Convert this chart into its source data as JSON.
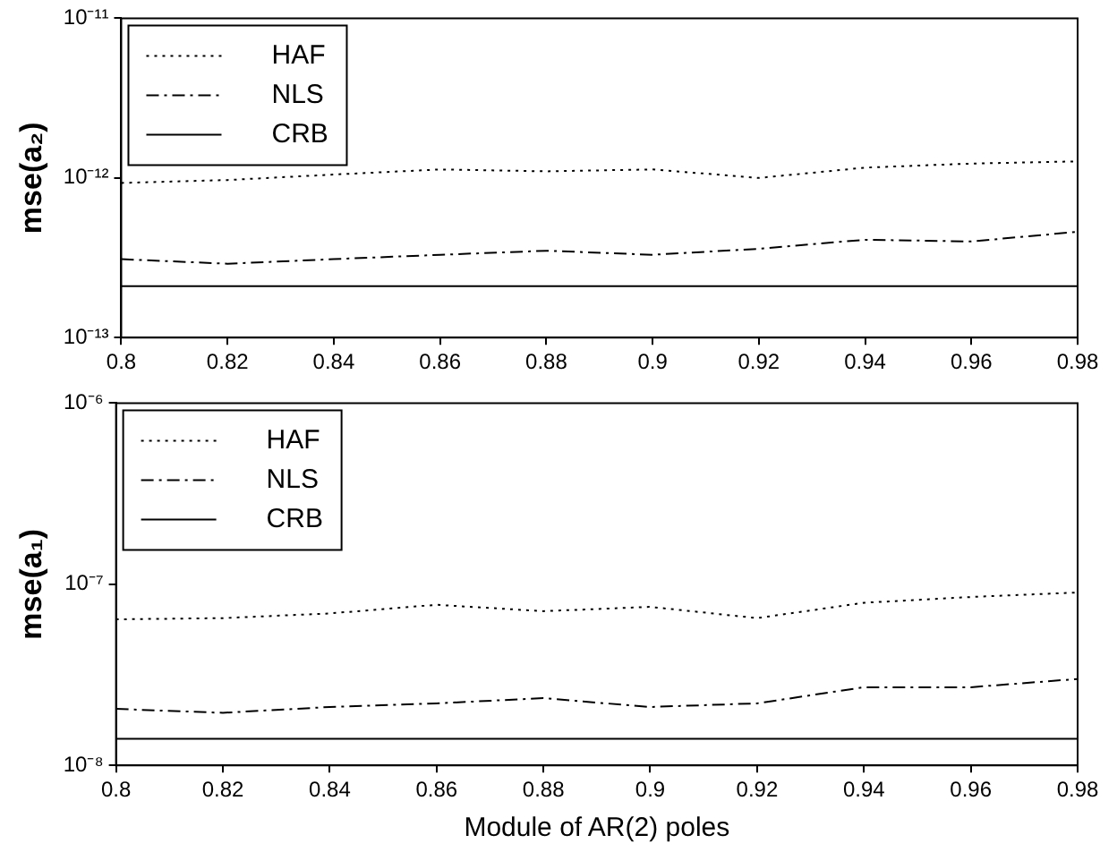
{
  "chart_data": [
    {
      "type": "line",
      "ylabel": "mse(a₂)",
      "legend": "top left",
      "grid": false,
      "marker": "none",
      "log": "y",
      "x": [
        0.8,
        0.82,
        0.84,
        0.86,
        0.88,
        0.9,
        0.92,
        0.94,
        0.96,
        0.98
      ],
      "xlim": [
        0.8,
        0.98
      ],
      "xticks": [
        0.8,
        0.82,
        0.84,
        0.86,
        0.88,
        0.9,
        0.92,
        0.94,
        0.96,
        0.98
      ],
      "ylim": [
        1e-13,
        1e-11
      ],
      "yticks": [
        {
          "value": 1e-13,
          "label": "10⁻¹³"
        },
        {
          "value": 1e-12,
          "label": "10⁻¹²"
        },
        {
          "value": 1e-11,
          "label": "10⁻¹¹"
        }
      ],
      "series": [
        {
          "name": "HAF",
          "color": "#000000",
          "line_style": "dotted",
          "values": [
            9.3e-13,
            9.7e-13,
            1.05e-12,
            1.13e-12,
            1.1e-12,
            1.13e-12,
            1e-12,
            1.16e-12,
            1.23e-12,
            1.27e-12
          ]
        },
        {
          "name": "NLS",
          "color": "#000000",
          "line_style": "dashed",
          "values": [
            3.1e-13,
            2.9e-13,
            3.1e-13,
            3.3e-13,
            3.5e-13,
            3.3e-13,
            3.6e-13,
            4.1e-13,
            4e-13,
            4.6e-13
          ]
        },
        {
          "name": "CRB",
          "color": "#000000",
          "line_style": "solid",
          "values": [
            2.1e-13,
            2.1e-13,
            2.1e-13,
            2.1e-13,
            2.1e-13,
            2.1e-13,
            2.1e-13,
            2.1e-13,
            2.1e-13,
            2.1e-13
          ]
        }
      ]
    },
    {
      "type": "line",
      "ylabel": "mse(a₁)",
      "xlabel": "Module of AR(2) poles",
      "legend": "top left",
      "grid": false,
      "marker": "none",
      "log": "y",
      "x": [
        0.8,
        0.82,
        0.84,
        0.86,
        0.88,
        0.9,
        0.92,
        0.94,
        0.96,
        0.98
      ],
      "xlim": [
        0.8,
        0.98
      ],
      "xticks": [
        0.8,
        0.82,
        0.84,
        0.86,
        0.88,
        0.9,
        0.92,
        0.94,
        0.96,
        0.98
      ],
      "ylim": [
        1e-08,
        1e-06
      ],
      "yticks": [
        {
          "value": 1e-08,
          "label": "10⁻⁸"
        },
        {
          "value": 1e-07,
          "label": "10⁻⁷"
        },
        {
          "value": 1e-06,
          "label": "10⁻⁶"
        }
      ],
      "series": [
        {
          "name": "HAF",
          "color": "#000000",
          "line_style": "dotted",
          "values": [
            6.4e-08,
            6.5e-08,
            6.9e-08,
            7.7e-08,
            7.1e-08,
            7.5e-08,
            6.5e-08,
            7.9e-08,
            8.5e-08,
            9e-08
          ]
        },
        {
          "name": "NLS",
          "color": "#000000",
          "line_style": "dashed",
          "values": [
            2.05e-08,
            1.95e-08,
            2.1e-08,
            2.2e-08,
            2.35e-08,
            2.1e-08,
            2.2e-08,
            2.7e-08,
            2.7e-08,
            3e-08
          ]
        },
        {
          "name": "CRB",
          "color": "#000000",
          "line_style": "solid",
          "values": [
            1.4e-08,
            1.4e-08,
            1.4e-08,
            1.4e-08,
            1.4e-08,
            1.4e-08,
            1.4e-08,
            1.4e-08,
            1.4e-08,
            1.4e-08
          ]
        }
      ]
    }
  ]
}
